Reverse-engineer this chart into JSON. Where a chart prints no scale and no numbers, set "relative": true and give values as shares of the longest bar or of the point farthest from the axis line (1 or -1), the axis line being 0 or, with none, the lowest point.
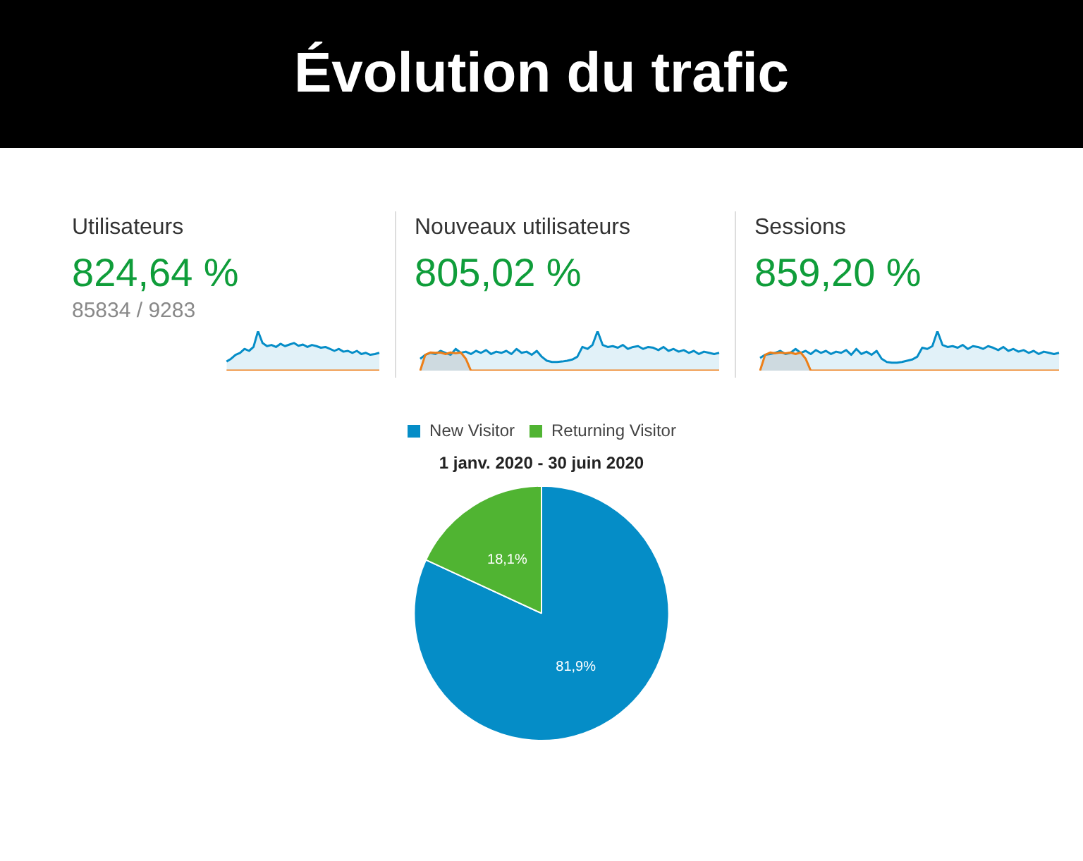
{
  "chart_data": [
    {
      "type": "other",
      "title": "Évolution du trafic"
    },
    {
      "type": "area",
      "title": "Utilisateurs",
      "annotations": [
        "824,64 %",
        "85834 / 9283"
      ],
      "relative": true,
      "categories": [
        null,
        null,
        null,
        null,
        null,
        null,
        null,
        null,
        null,
        null,
        null,
        null,
        null,
        null,
        null,
        null,
        null,
        null,
        null,
        null,
        null,
        null,
        null,
        null,
        null,
        null,
        null,
        null,
        null,
        null,
        null,
        null,
        null,
        null,
        null,
        null,
        null,
        null,
        null,
        null,
        null,
        null,
        null,
        null,
        null,
        null,
        null,
        null,
        null,
        null,
        null,
        null,
        null,
        null,
        null,
        null,
        null,
        null,
        null,
        null
      ],
      "series": [
        {
          "color": "#058dc7",
          "values": [
            null,
            null,
            null,
            null,
            null,
            null,
            null,
            null,
            null,
            null,
            null,
            null,
            null,
            null,
            null,
            null,
            null,
            null,
            null,
            null,
            null,
            null,
            null,
            null,
            null,
            0.23,
            0.3,
            0.4,
            0.45,
            0.55,
            0.5,
            0.6,
            1.0,
            0.7,
            0.62,
            0.65,
            0.6,
            0.68,
            0.62,
            0.66,
            0.7,
            0.63,
            0.66,
            0.6,
            0.65,
            0.62,
            0.58,
            0.6,
            0.55,
            0.5,
            0.55,
            0.48,
            0.5,
            0.45,
            0.5,
            0.42,
            0.45,
            0.4,
            0.42,
            0.45
          ]
        },
        {
          "type": "line",
          "color": "#ed7e17",
          "values": [
            null,
            null,
            null,
            null,
            null,
            null,
            null,
            null,
            null,
            null,
            null,
            null,
            null,
            null,
            null,
            null,
            null,
            null,
            null,
            null,
            null,
            null,
            null,
            null,
            null,
            0,
            0,
            0,
            0,
            0,
            0,
            0,
            0,
            0,
            0,
            0,
            0,
            0,
            0,
            0,
            0,
            0,
            0,
            0,
            0,
            0,
            0,
            0,
            0,
            0,
            0,
            0,
            0,
            0,
            0,
            0,
            0,
            0,
            0,
            0
          ]
        }
      ]
    },
    {
      "type": "area",
      "title": "Nouveaux utilisateurs",
      "annotations": [
        "805,02 %"
      ],
      "relative": true,
      "categories": [
        null,
        null,
        null,
        null,
        null,
        null,
        null,
        null,
        null,
        null,
        null,
        null,
        null,
        null,
        null,
        null,
        null,
        null,
        null,
        null,
        null,
        null,
        null,
        null,
        null,
        null,
        null,
        null,
        null,
        null,
        null,
        null,
        null,
        null,
        null,
        null,
        null,
        null,
        null,
        null,
        null,
        null,
        null,
        null,
        null,
        null,
        null,
        null,
        null,
        null,
        null,
        null,
        null,
        null,
        null,
        null,
        null,
        null,
        null,
        null
      ],
      "series": [
        {
          "color": "#058dc7",
          "values": [
            0.3,
            0.4,
            0.45,
            0.42,
            0.5,
            0.45,
            0.4,
            0.55,
            0.45,
            0.48,
            0.42,
            0.5,
            0.45,
            0.52,
            0.42,
            0.48,
            0.45,
            0.5,
            0.42,
            0.55,
            0.45,
            0.48,
            0.4,
            0.5,
            0.35,
            0.25,
            0.22,
            0.22,
            0.23,
            0.25,
            0.28,
            0.35,
            0.6,
            0.55,
            0.65,
            1.0,
            0.65,
            0.6,
            0.62,
            0.58,
            0.65,
            0.55,
            0.6,
            0.62,
            0.55,
            0.6,
            0.58,
            0.52,
            0.6,
            0.5,
            0.55,
            0.48,
            0.52,
            0.45,
            0.5,
            0.42,
            0.48,
            0.45,
            0.42,
            0.45
          ]
        },
        {
          "color": "#ed7e17",
          "values": [
            0,
            0.4,
            0.46,
            0.45,
            0.46,
            0.42,
            0.46,
            0.44,
            0.46,
            0.3,
            0,
            0,
            0,
            0,
            0,
            0,
            0,
            0,
            0,
            0,
            0,
            0,
            0,
            0,
            0,
            0,
            0,
            0,
            0,
            0,
            0,
            0,
            0,
            0,
            0,
            0,
            0,
            0,
            0,
            0,
            0,
            0,
            0,
            0,
            0,
            0,
            0,
            0,
            0,
            0,
            0,
            0,
            0,
            0,
            0,
            0,
            0,
            0,
            0,
            0
          ]
        }
      ]
    },
    {
      "type": "area",
      "title": "Sessions",
      "annotations": [
        "859,20 %"
      ],
      "relative": true,
      "categories": [
        null,
        null,
        null,
        null,
        null,
        null,
        null,
        null,
        null,
        null,
        null,
        null,
        null,
        null,
        null,
        null,
        null,
        null,
        null,
        null,
        null,
        null,
        null,
        null,
        null,
        null,
        null,
        null,
        null,
        null,
        null,
        null,
        null,
        null,
        null,
        null,
        null,
        null,
        null,
        null,
        null,
        null,
        null,
        null,
        null,
        null,
        null,
        null,
        null,
        null,
        null,
        null,
        null,
        null,
        null,
        null,
        null,
        null,
        null,
        null
      ],
      "series": [
        {
          "color": "#058dc7",
          "values": [
            0.32,
            0.4,
            0.42,
            0.45,
            0.5,
            0.42,
            0.45,
            0.55,
            0.45,
            0.5,
            0.42,
            0.52,
            0.45,
            0.5,
            0.42,
            0.48,
            0.45,
            0.52,
            0.4,
            0.55,
            0.42,
            0.48,
            0.4,
            0.5,
            0.3,
            0.22,
            0.2,
            0.2,
            0.22,
            0.25,
            0.28,
            0.35,
            0.58,
            0.55,
            0.62,
            1.0,
            0.65,
            0.6,
            0.62,
            0.58,
            0.65,
            0.55,
            0.62,
            0.6,
            0.55,
            0.62,
            0.58,
            0.52,
            0.6,
            0.5,
            0.55,
            0.48,
            0.52,
            0.45,
            0.5,
            0.42,
            0.48,
            0.45,
            0.42,
            0.45
          ]
        },
        {
          "color": "#ed7e17",
          "values": [
            0,
            0.4,
            0.46,
            0.44,
            0.46,
            0.44,
            0.46,
            0.42,
            0.46,
            0.3,
            0,
            0,
            0,
            0,
            0,
            0,
            0,
            0,
            0,
            0,
            0,
            0,
            0,
            0,
            0,
            0,
            0,
            0,
            0,
            0,
            0,
            0,
            0,
            0,
            0,
            0,
            0,
            0,
            0,
            0,
            0,
            0,
            0,
            0,
            0,
            0,
            0,
            0,
            0,
            0,
            0,
            0,
            0,
            0,
            0,
            0,
            0,
            0,
            0,
            0
          ]
        }
      ]
    },
    {
      "type": "pie",
      "subtitle": "1 janv. 2020 - 30 juin 2020",
      "categories": [
        "New Visitor",
        "Returning Visitor"
      ],
      "values": [
        81.9,
        18.1
      ],
      "colors": [
        "#058dc7",
        "#50b432"
      ],
      "value_labels": [
        "81,9%",
        "18,1%"
      ],
      "legend": "top"
    }
  ]
}
